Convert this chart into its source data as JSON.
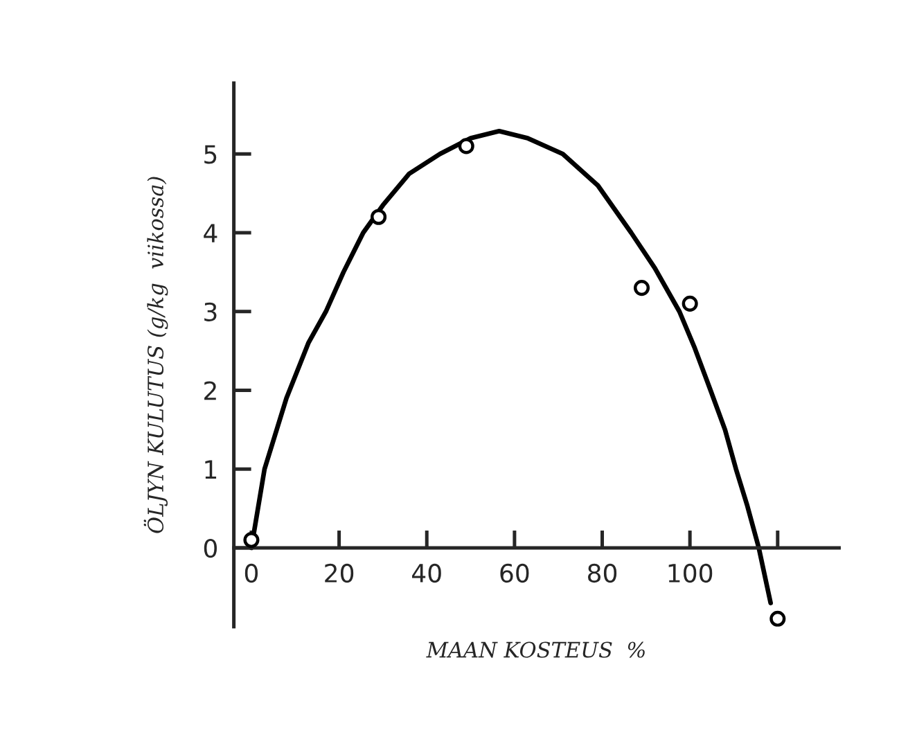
{
  "chart_data": {
    "type": "scatter",
    "xlabel": "MAAN KOSTEUS  %",
    "ylabel": "ÖLJYN KULUTUS (g/kg  viikossa)",
    "xlim": [
      -4,
      134
    ],
    "ylim": [
      -1,
      5.9
    ],
    "xticks": [
      0,
      20,
      40,
      60,
      80,
      100,
      {
        "value": 120,
        "label": null
      }
    ],
    "yticks": [
      0,
      1,
      2,
      3,
      4,
      5
    ],
    "grid": false,
    "legend": false,
    "series": [
      {
        "color": "#000000",
        "marker": "circle",
        "x": [
          0,
          29,
          49,
          89,
          100,
          120
        ],
        "values": [
          0.1,
          4.2,
          5.1,
          3.3,
          3.1,
          -0.9
        ]
      },
      {
        "type": "line",
        "color": "#000000",
        "marker": "none",
        "line_style": "solid",
        "x": [
          0,
          3,
          8,
          13,
          17,
          21,
          25.5,
          30,
          36,
          43,
          50,
          56.5,
          63,
          71,
          79,
          86.6,
          92,
          97.6,
          101,
          104.7,
          108,
          110.5,
          113,
          115.7,
          118.4
        ],
        "values": [
          0,
          1,
          1.9,
          2.6,
          3,
          3.5,
          4,
          4.35,
          4.75,
          5,
          5.2,
          5.29,
          5.2,
          5,
          4.6,
          4,
          3.55,
          3,
          2.55,
          2,
          1.5,
          1,
          0.55,
          0,
          -0.7
        ]
      }
    ]
  }
}
